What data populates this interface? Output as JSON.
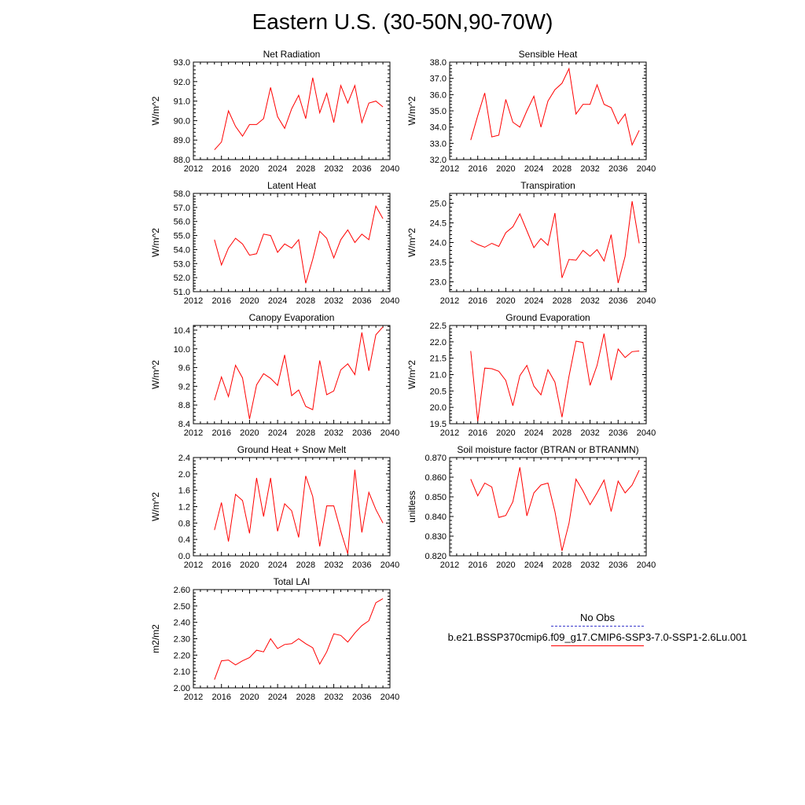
{
  "title": "Eastern U.S. (30-50N,90-70W)",
  "legend": {
    "obs_label": "No Obs",
    "obs_color": "#3a3acc",
    "case_label": "b.e21.BSSP370cmip6.f09_g17.CMIP6-SSP3-7.0-SSP1-2.6Lu.001",
    "case_color": "#ff0000"
  },
  "chart_data": [
    {
      "type": "line",
      "title": "Net Radiation",
      "ylabel": "W/m^2",
      "xlim": [
        2012,
        2040
      ],
      "xticks": [
        "2012",
        "2016",
        "2020",
        "2024",
        "2028",
        "2032",
        "2036",
        "2040"
      ],
      "ylim": [
        88.0,
        93.0
      ],
      "yticks": [
        "88.0",
        "89.0",
        "90.0",
        "91.0",
        "92.0",
        "93.0"
      ],
      "series": [
        {
          "color": "#ff0000",
          "x": [
            2015,
            2016,
            2017,
            2018,
            2019,
            2020,
            2021,
            2022,
            2023,
            2024,
            2025,
            2026,
            2027,
            2028,
            2029,
            2030,
            2031,
            2032,
            2033,
            2034,
            2035,
            2036,
            2037,
            2038,
            2039
          ],
          "values": [
            88.5,
            88.9,
            90.5,
            89.7,
            89.2,
            89.8,
            89.8,
            90.1,
            91.7,
            90.2,
            89.6,
            90.6,
            91.3,
            90.1,
            92.2,
            90.4,
            91.4,
            89.9,
            91.8,
            90.9,
            91.8,
            89.9,
            90.9,
            91.0,
            90.7
          ]
        }
      ]
    },
    {
      "type": "line",
      "title": "Sensible Heat",
      "ylabel": "W/m^2",
      "xlim": [
        2012,
        2040
      ],
      "xticks": [
        "2012",
        "2016",
        "2020",
        "2024",
        "2028",
        "2032",
        "2036",
        "2040"
      ],
      "ylim": [
        32.0,
        38.0
      ],
      "yticks": [
        "32.0",
        "33.0",
        "34.0",
        "35.0",
        "36.0",
        "37.0",
        "38.0"
      ],
      "series": [
        {
          "color": "#ff0000",
          "x": [
            2015,
            2016,
            2017,
            2018,
            2019,
            2020,
            2021,
            2022,
            2023,
            2024,
            2025,
            2026,
            2027,
            2028,
            2029,
            2030,
            2031,
            2032,
            2033,
            2034,
            2035,
            2036,
            2037,
            2038,
            2039
          ],
          "values": [
            33.2,
            34.7,
            36.1,
            33.4,
            33.5,
            35.7,
            34.3,
            34.0,
            35.0,
            35.9,
            34.0,
            35.6,
            36.3,
            36.7,
            37.6,
            34.8,
            35.4,
            35.4,
            36.6,
            35.4,
            35.2,
            34.2,
            34.8,
            32.9,
            33.8
          ]
        }
      ]
    },
    {
      "type": "line",
      "title": "Latent Heat",
      "ylabel": "W/m^2",
      "xlim": [
        2012,
        2040
      ],
      "xticks": [
        "2012",
        "2016",
        "2020",
        "2024",
        "2028",
        "2032",
        "2036",
        "2040"
      ],
      "ylim": [
        51.0,
        58.0
      ],
      "yticks": [
        "51.0",
        "52.0",
        "53.0",
        "54.0",
        "55.0",
        "56.0",
        "57.0",
        "58.0"
      ],
      "series": [
        {
          "color": "#ff0000",
          "x": [
            2015,
            2016,
            2017,
            2018,
            2019,
            2020,
            2021,
            2022,
            2023,
            2024,
            2025,
            2026,
            2027,
            2028,
            2029,
            2030,
            2031,
            2032,
            2033,
            2034,
            2035,
            2036,
            2037,
            2038,
            2039
          ],
          "values": [
            54.7,
            52.9,
            54.1,
            54.8,
            54.4,
            53.6,
            53.7,
            55.1,
            55.0,
            53.8,
            54.4,
            54.1,
            54.7,
            51.6,
            53.3,
            55.3,
            54.8,
            53.4,
            54.7,
            55.4,
            54.5,
            55.1,
            54.7,
            57.1,
            56.2
          ]
        }
      ]
    },
    {
      "type": "line",
      "title": "Transpiration",
      "ylabel": "W/m^2",
      "xlim": [
        2012,
        2040
      ],
      "xticks": [
        "2012",
        "2016",
        "2020",
        "2024",
        "2028",
        "2032",
        "2036",
        "2040"
      ],
      "ylim": [
        22.75,
        25.25
      ],
      "yticks": [
        "23.0",
        "23.5",
        "24.0",
        "24.5",
        "25.0"
      ],
      "series": [
        {
          "color": "#ff0000",
          "x": [
            2015,
            2016,
            2017,
            2018,
            2019,
            2020,
            2021,
            2022,
            2023,
            2024,
            2025,
            2026,
            2027,
            2028,
            2029,
            2030,
            2031,
            2032,
            2033,
            2034,
            2035,
            2036,
            2037,
            2038,
            2039
          ],
          "values": [
            24.05,
            23.95,
            23.88,
            23.98,
            23.9,
            24.25,
            24.4,
            24.73,
            24.3,
            23.87,
            24.1,
            23.93,
            24.75,
            23.1,
            23.57,
            23.55,
            23.8,
            23.65,
            23.82,
            23.53,
            24.2,
            22.97,
            23.65,
            25.05,
            23.98
          ]
        }
      ]
    },
    {
      "type": "line",
      "title": "Canopy Evaporation",
      "ylabel": "W/m^2",
      "xlim": [
        2012,
        2040
      ],
      "xticks": [
        "2012",
        "2016",
        "2020",
        "2024",
        "2028",
        "2032",
        "2036",
        "2040"
      ],
      "ylim": [
        8.4,
        10.5
      ],
      "yticks": [
        "8.4",
        "8.8",
        "9.2",
        "9.6",
        "10.0",
        "10.4"
      ],
      "series": [
        {
          "color": "#ff0000",
          "x": [
            2015,
            2016,
            2017,
            2018,
            2019,
            2020,
            2021,
            2022,
            2023,
            2024,
            2025,
            2026,
            2027,
            2028,
            2029,
            2030,
            2031,
            2032,
            2033,
            2034,
            2035,
            2036,
            2037,
            2038,
            2039
          ],
          "values": [
            8.9,
            9.4,
            8.98,
            9.65,
            9.38,
            8.5,
            9.23,
            9.47,
            9.37,
            9.22,
            9.87,
            9.0,
            9.12,
            8.77,
            8.7,
            9.75,
            9.02,
            9.1,
            9.55,
            9.68,
            9.45,
            10.35,
            9.53,
            10.3,
            10.47
          ]
        }
      ]
    },
    {
      "type": "line",
      "title": "Ground Evaporation",
      "ylabel": "W/m^2",
      "xlim": [
        2012,
        2040
      ],
      "xticks": [
        "2012",
        "2016",
        "2020",
        "2024",
        "2028",
        "2032",
        "2036",
        "2040"
      ],
      "ylim": [
        19.5,
        22.5
      ],
      "yticks": [
        "19.5",
        "20.0",
        "20.5",
        "21.0",
        "21.5",
        "22.0",
        "22.5"
      ],
      "series": [
        {
          "color": "#ff0000",
          "x": [
            2015,
            2016,
            2017,
            2018,
            2019,
            2020,
            2021,
            2022,
            2023,
            2024,
            2025,
            2026,
            2027,
            2028,
            2029,
            2030,
            2031,
            2032,
            2033,
            2034,
            2035,
            2036,
            2037,
            2038,
            2039
          ],
          "values": [
            21.72,
            19.58,
            21.2,
            21.18,
            21.1,
            20.82,
            20.05,
            20.97,
            21.28,
            20.65,
            20.38,
            21.15,
            20.77,
            19.7,
            20.95,
            22.02,
            21.98,
            20.67,
            21.28,
            22.25,
            20.83,
            21.78,
            21.52,
            21.7,
            21.72
          ]
        }
      ]
    },
    {
      "type": "line",
      "title": "Ground Heat + Snow Melt",
      "ylabel": "W/m^2",
      "xlim": [
        2012,
        2040
      ],
      "xticks": [
        "2012",
        "2016",
        "2020",
        "2024",
        "2028",
        "2032",
        "2036",
        "2040"
      ],
      "ylim": [
        0.0,
        2.4
      ],
      "yticks": [
        "0.0",
        "0.4",
        "0.8",
        "1.2",
        "1.6",
        "2.0",
        "2.4"
      ],
      "series": [
        {
          "color": "#ff0000",
          "x": [
            2015,
            2016,
            2017,
            2018,
            2019,
            2020,
            2021,
            2022,
            2023,
            2024,
            2025,
            2026,
            2027,
            2028,
            2029,
            2030,
            2031,
            2032,
            2033,
            2034,
            2035,
            2036,
            2037,
            2038,
            2039
          ],
          "values": [
            0.63,
            1.3,
            0.35,
            1.5,
            1.35,
            0.55,
            1.9,
            0.96,
            1.9,
            0.6,
            1.27,
            1.1,
            0.45,
            1.95,
            1.45,
            0.23,
            1.22,
            1.22,
            0.6,
            0.05,
            2.1,
            0.57,
            1.55,
            1.13,
            0.8
          ]
        }
      ]
    },
    {
      "type": "line",
      "title": "Soil moisture factor (BTRAN or BTRANMN)",
      "ylabel": "unitless",
      "xlim": [
        2012,
        2040
      ],
      "xticks": [
        "2012",
        "2016",
        "2020",
        "2024",
        "2028",
        "2032",
        "2036",
        "2040"
      ],
      "ylim": [
        0.82,
        0.87
      ],
      "yticks": [
        "0.820",
        "0.830",
        "0.840",
        "0.850",
        "0.860",
        "0.870"
      ],
      "series": [
        {
          "color": "#ff0000",
          "x": [
            2015,
            2016,
            2017,
            2018,
            2019,
            2020,
            2021,
            2022,
            2023,
            2024,
            2025,
            2026,
            2027,
            2028,
            2029,
            2030,
            2031,
            2032,
            2033,
            2034,
            2035,
            2036,
            2037,
            2038,
            2039
          ],
          "values": [
            0.859,
            0.8505,
            0.857,
            0.855,
            0.8395,
            0.8405,
            0.8475,
            0.865,
            0.8403,
            0.852,
            0.856,
            0.857,
            0.8425,
            0.8225,
            0.8365,
            0.859,
            0.853,
            0.846,
            0.852,
            0.8585,
            0.8425,
            0.858,
            0.852,
            0.856,
            0.8635
          ]
        }
      ]
    },
    {
      "type": "line",
      "title": "Total LAI",
      "ylabel": "m2/m2",
      "xlim": [
        2012,
        2040
      ],
      "xticks": [
        "2012",
        "2016",
        "2020",
        "2024",
        "2028",
        "2032",
        "2036",
        "2040"
      ],
      "ylim": [
        2.0,
        2.6
      ],
      "yticks": [
        "2.00",
        "2.10",
        "2.20",
        "2.30",
        "2.40",
        "2.50",
        "2.60"
      ],
      "series": [
        {
          "color": "#ff0000",
          "x": [
            2015,
            2016,
            2017,
            2018,
            2019,
            2020,
            2021,
            2022,
            2023,
            2024,
            2025,
            2026,
            2027,
            2028,
            2029,
            2030,
            2031,
            2032,
            2033,
            2034,
            2035,
            2036,
            2037,
            2038,
            2039
          ],
          "values": [
            2.05,
            2.165,
            2.17,
            2.14,
            2.165,
            2.185,
            2.23,
            2.22,
            2.3,
            2.24,
            2.265,
            2.27,
            2.3,
            2.27,
            2.245,
            2.145,
            2.22,
            2.33,
            2.32,
            2.28,
            2.335,
            2.38,
            2.41,
            2.52,
            2.545
          ]
        }
      ]
    }
  ]
}
